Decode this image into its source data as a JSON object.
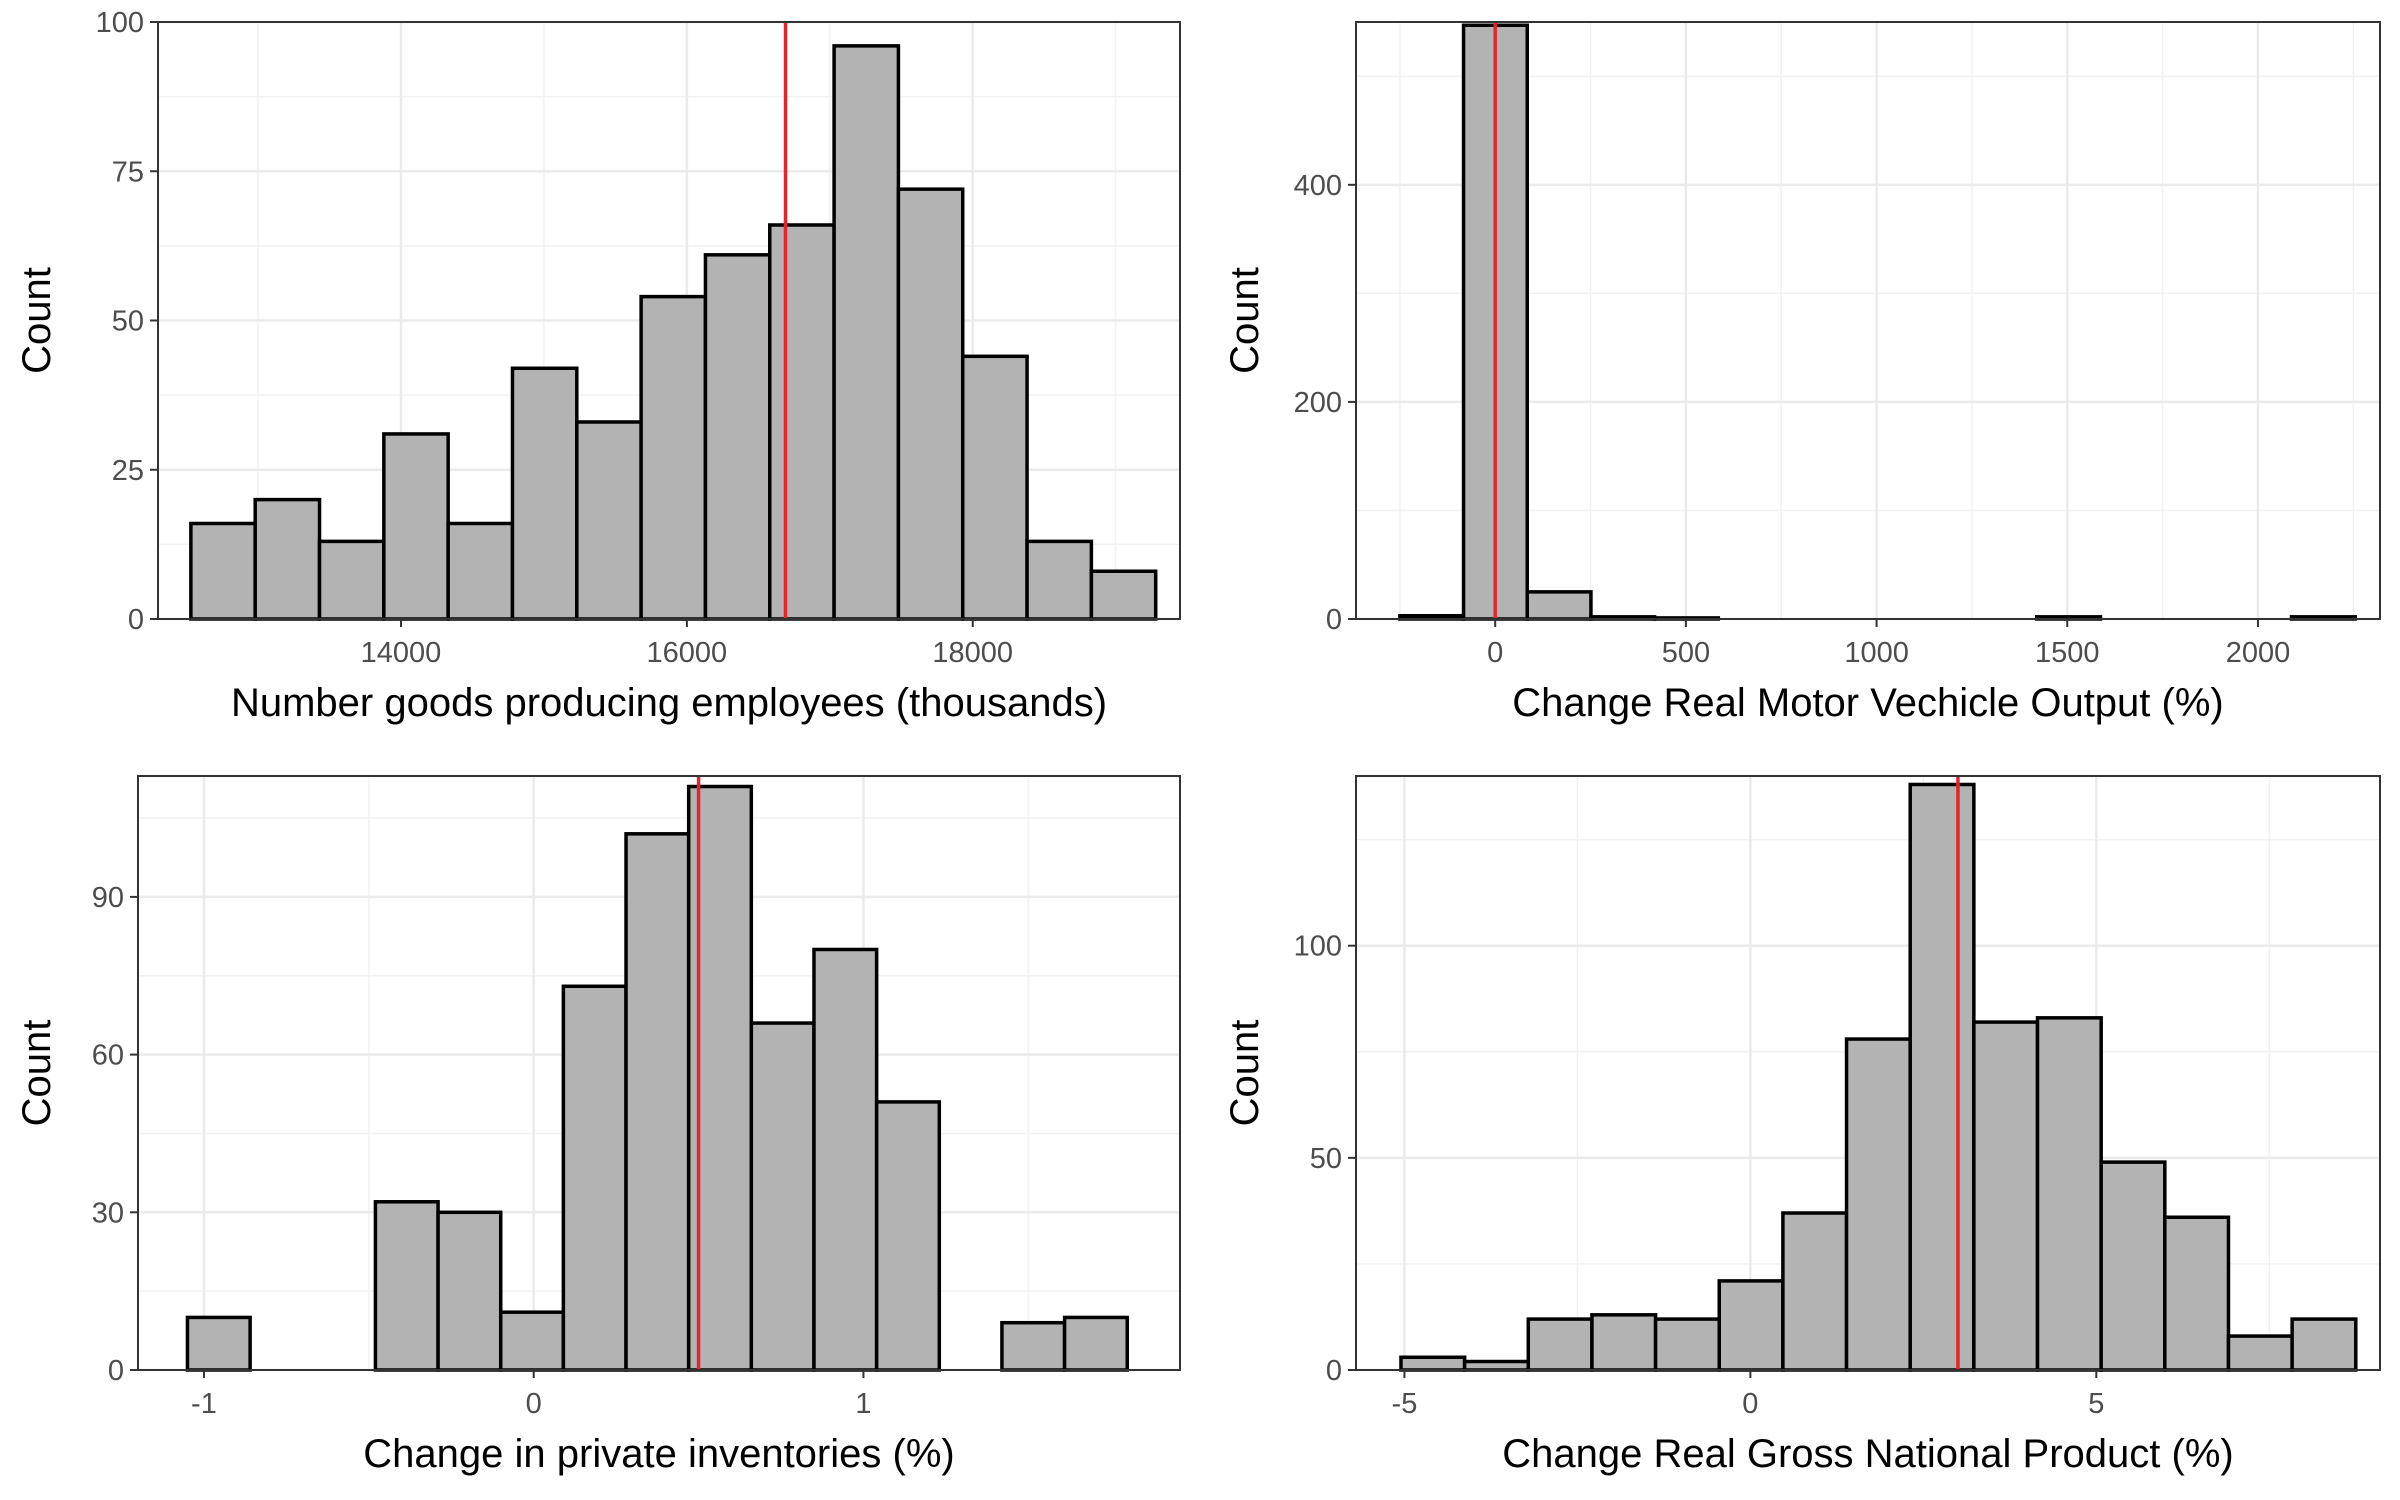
{
  "chart_data": [
    {
      "type": "bar",
      "panel": "top-left",
      "xlabel": "Number goods producing employees (thousands)",
      "ylabel": "Count",
      "xlim": [
        12300,
        19450
      ],
      "ylim": [
        0,
        100
      ],
      "x_ticks": [
        14000,
        16000,
        18000
      ],
      "x_tick_labels": [
        "14000",
        "16000",
        "18000"
      ],
      "y_ticks": [
        0,
        25,
        50,
        75,
        100
      ],
      "y_tick_labels": [
        "0",
        "25",
        "50",
        "75",
        "100"
      ],
      "bin_edges": [
        12530,
        12980,
        13430,
        13880,
        14330,
        14780,
        15230,
        15680,
        16130,
        16580,
        17030,
        17480,
        17930,
        18380,
        18830,
        19280
      ],
      "counts": [
        16,
        20,
        13,
        31,
        16,
        42,
        33,
        54,
        61,
        66,
        96,
        72,
        44,
        13,
        8
      ],
      "reference_line": 16690,
      "reference_line_color": "#e3262b",
      "bar_fill": "#b3b3b3",
      "bar_stroke": "#000000",
      "grid": true
    },
    {
      "type": "bar",
      "panel": "top-right",
      "xlabel": "Change Real Motor Vechicle Output (%)",
      "ylabel": "Count",
      "xlim": [
        -365,
        2320
      ],
      "ylim": [
        0,
        550
      ],
      "x_ticks": [
        0,
        500,
        1000,
        1500,
        2000
      ],
      "x_tick_labels": [
        "0",
        "500",
        "1000",
        "1500",
        "2000"
      ],
      "y_ticks": [
        0,
        200,
        400
      ],
      "y_tick_labels": [
        "0",
        "200",
        "400"
      ],
      "bin_edges": [
        -250,
        -83,
        84,
        251,
        418,
        585,
        752,
        919,
        1086,
        1253,
        1420,
        1587,
        1754,
        1921,
        2088,
        2255
      ],
      "counts": [
        3,
        547,
        25,
        2,
        1,
        0,
        0,
        0,
        0,
        0,
        2,
        0,
        0,
        0,
        2
      ],
      "reference_line": 0,
      "reference_line_color": "#e3262b",
      "bar_fill": "#b3b3b3",
      "bar_stroke": "#000000",
      "grid": true
    },
    {
      "type": "bar",
      "panel": "bottom-left",
      "xlabel": "Change in private inventories (%)",
      "ylabel": "Count",
      "xlim": [
        -1.2,
        1.96
      ],
      "ylim": [
        0,
        113
      ],
      "x_ticks": [
        -1,
        0,
        1
      ],
      "x_tick_labels": [
        "-1",
        "0",
        "1"
      ],
      "y_ticks": [
        0,
        30,
        60,
        90
      ],
      "y_tick_labels": [
        "0",
        "30",
        "60",
        "90"
      ],
      "bin_edges": [
        -1.05,
        -0.86,
        -0.67,
        -0.48,
        -0.29,
        -0.1,
        0.09,
        0.28,
        0.47,
        0.66,
        0.85,
        1.04,
        1.23,
        1.42,
        1.61,
        1.8
      ],
      "counts": [
        10,
        0,
        0,
        32,
        30,
        11,
        73,
        102,
        111,
        66,
        80,
        51,
        0,
        9,
        10
      ],
      "reference_line": 0.5,
      "reference_line_color": "#e3262b",
      "bar_fill": "#b3b3b3",
      "bar_stroke": "#000000",
      "grid": true
    },
    {
      "type": "bar",
      "panel": "bottom-right",
      "xlabel": "Change Real Gross National Product (%)",
      "ylabel": "Count",
      "xlim": [
        -5.7,
        9.1
      ],
      "ylim": [
        0,
        140
      ],
      "x_ticks": [
        -5,
        0,
        5
      ],
      "x_tick_labels": [
        "-5",
        "0",
        "5"
      ],
      "y_ticks": [
        0,
        50,
        100
      ],
      "y_tick_labels": [
        "0",
        "50",
        "100"
      ],
      "bin_edges": [
        -5.05,
        -4.13,
        -3.21,
        -2.29,
        -1.37,
        -0.45,
        0.47,
        1.39,
        2.31,
        3.23,
        4.15,
        5.07,
        5.99,
        6.91,
        7.83,
        8.75
      ],
      "counts": [
        3,
        2,
        12,
        13,
        12,
        21,
        37,
        78,
        138,
        82,
        83,
        49,
        36,
        8,
        12
      ],
      "reference_line": 3,
      "reference_line_color": "#e3262b",
      "bar_fill": "#b3b3b3",
      "bar_stroke": "#000000",
      "grid": true
    }
  ]
}
